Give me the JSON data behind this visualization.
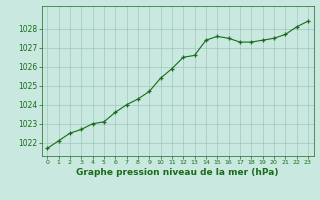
{
  "x": [
    0,
    1,
    2,
    3,
    4,
    5,
    6,
    7,
    8,
    9,
    10,
    11,
    12,
    13,
    14,
    15,
    16,
    17,
    18,
    19,
    20,
    21,
    22,
    23
  ],
  "y": [
    1021.7,
    1022.1,
    1022.5,
    1022.7,
    1023.0,
    1023.1,
    1023.6,
    1024.0,
    1024.3,
    1024.7,
    1025.4,
    1025.9,
    1026.5,
    1026.6,
    1027.4,
    1027.6,
    1027.5,
    1027.3,
    1027.3,
    1027.4,
    1027.5,
    1027.7,
    1028.1,
    1028.4
  ],
  "line_color": "#1a6b1a",
  "marker": "+",
  "background_color": "#c8e8e0",
  "grid_color": "#a0c8be",
  "xlabel": "Graphe pression niveau de la mer (hPa)",
  "xlabel_color": "#1a6b1a",
  "tick_color": "#1a6b1a",
  "ylabel_ticks": [
    1022,
    1023,
    1024,
    1025,
    1026,
    1027,
    1028
  ],
  "xlim": [
    -0.5,
    23.5
  ],
  "ylim": [
    1021.3,
    1029.2
  ]
}
